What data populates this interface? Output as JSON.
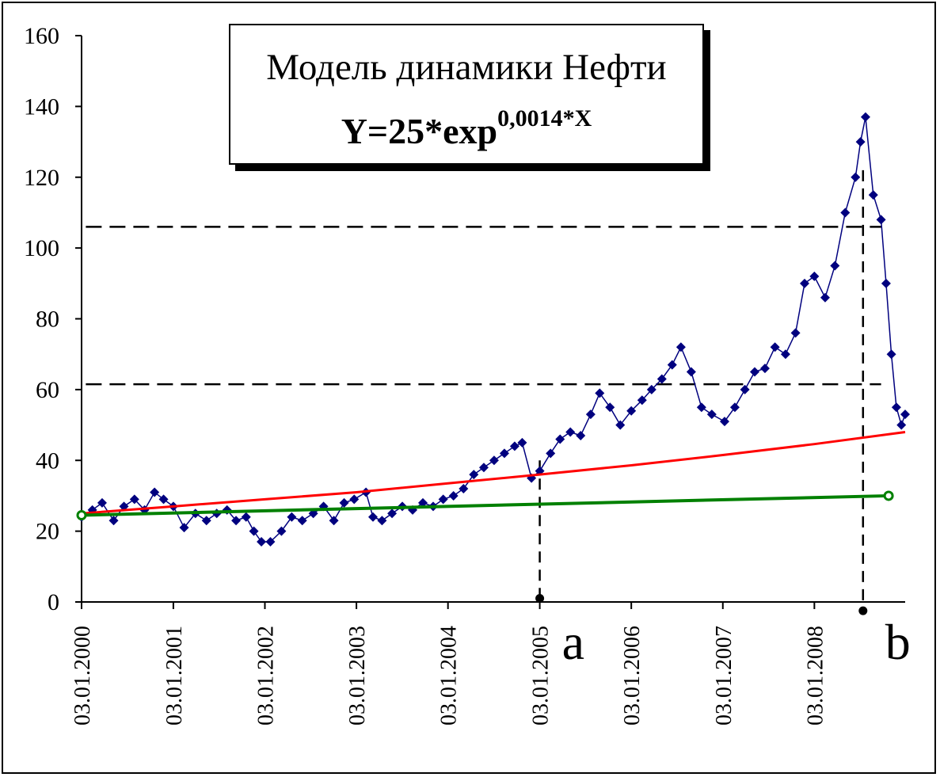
{
  "chart_data": {
    "type": "line",
    "title": "Модель динамики Нефти",
    "formula": {
      "base": "Y=25*exp",
      "exponent": "0,0014*X"
    },
    "xlabel": "",
    "ylabel": "",
    "ylim": [
      0,
      160
    ],
    "yticks": [
      "0",
      "20",
      "40",
      "60",
      "80",
      "100",
      "120",
      "140",
      "160"
    ],
    "xlim": [
      "2000-01-03",
      "2008-12-30"
    ],
    "xticks": [
      {
        "date": "2000-01-03",
        "label": "03.01.2000"
      },
      {
        "date": "2001-01-03",
        "label": "03.01.2001"
      },
      {
        "date": "2002-01-03",
        "label": "03.01.2002"
      },
      {
        "date": "2003-01-03",
        "label": "03.01.2003"
      },
      {
        "date": "2004-01-03",
        "label": "03.01.2004"
      },
      {
        "date": "2005-01-03",
        "label": "03.01.2005"
      },
      {
        "date": "2006-01-03",
        "label": "03.01.2006"
      },
      {
        "date": "2007-01-03",
        "label": "03.01.2007"
      },
      {
        "date": "2008-01-03",
        "label": "03.01.2008"
      }
    ],
    "grid": false,
    "series": [
      {
        "name": "",
        "color": "#00007f",
        "marker": "diamond",
        "x": [
          "2000-01-03",
          "2000-02-15",
          "2000-03-25",
          "2000-05-10",
          "2000-06-20",
          "2000-08-01",
          "2000-09-10",
          "2000-10-20",
          "2000-11-25",
          "2001-01-03",
          "2001-02-15",
          "2001-04-01",
          "2001-05-15",
          "2001-06-25",
          "2001-08-05",
          "2001-09-10",
          "2001-10-20",
          "2001-11-20",
          "2001-12-20",
          "2002-01-25",
          "2002-03-10",
          "2002-04-20",
          "2002-06-01",
          "2002-07-15",
          "2002-08-25",
          "2002-10-05",
          "2002-11-15",
          "2002-12-25",
          "2003-02-10",
          "2003-03-10",
          "2003-04-15",
          "2003-05-25",
          "2003-07-05",
          "2003-08-15",
          "2003-09-25",
          "2003-11-05",
          "2003-12-15",
          "2004-01-25",
          "2004-03-05",
          "2004-04-15",
          "2004-05-25",
          "2004-07-05",
          "2004-08-15",
          "2004-09-25",
          "2004-10-25",
          "2004-12-01",
          "2005-01-03",
          "2005-02-15",
          "2005-03-25",
          "2005-05-05",
          "2005-06-15",
          "2005-07-25",
          "2005-08-30",
          "2005-10-10",
          "2005-11-20",
          "2006-01-03",
          "2006-02-15",
          "2006-03-25",
          "2006-05-05",
          "2006-06-15",
          "2006-07-20",
          "2006-08-30",
          "2006-10-10",
          "2006-11-20",
          "2007-01-10",
          "2007-02-20",
          "2007-04-01",
          "2007-05-10",
          "2007-06-20",
          "2007-07-30",
          "2007-09-10",
          "2007-10-20",
          "2007-11-25",
          "2008-01-03",
          "2008-02-15",
          "2008-03-25",
          "2008-05-05",
          "2008-06-15",
          "2008-07-05",
          "2008-07-25",
          "2008-08-25",
          "2008-09-25",
          "2008-10-15",
          "2008-11-05",
          "2008-11-25",
          "2008-12-15",
          "2008-12-30"
        ],
        "values": [
          24,
          26,
          28,
          23,
          27,
          29,
          26,
          31,
          29,
          27,
          21,
          25,
          23,
          25,
          26,
          23,
          24,
          20,
          17,
          17,
          20,
          24,
          23,
          25,
          27,
          23,
          28,
          29,
          31,
          24,
          23,
          25,
          27,
          26,
          28,
          27,
          29,
          30,
          32,
          36,
          38,
          40,
          42,
          44,
          45,
          35,
          37,
          42,
          46,
          48,
          47,
          53,
          59,
          55,
          50,
          54,
          57,
          60,
          63,
          67,
          72,
          65,
          55,
          53,
          51,
          55,
          60,
          65,
          66,
          72,
          70,
          76,
          90,
          92,
          86,
          95,
          110,
          120,
          130,
          137,
          115,
          108,
          90,
          70,
          55,
          50,
          53
        ]
      },
      {
        "name": "",
        "color": "#ff0000",
        "x": [
          "2000-01-03",
          "2001-01-03",
          "2002-01-03",
          "2003-01-03",
          "2004-01-03",
          "2005-01-03",
          "2006-01-03",
          "2007-01-03",
          "2008-01-03",
          "2008-12-30"
        ],
        "values": [
          25,
          27,
          29,
          31,
          33.5,
          36,
          38.6,
          41.5,
          44.6,
          48
        ]
      },
      {
        "name": "",
        "color": "#008000",
        "marker": "circle-ends",
        "x": [
          "2000-01-03",
          "2008-10-25"
        ],
        "values": [
          24.5,
          30
        ]
      }
    ],
    "reference_lines": [
      {
        "orientation": "horizontal",
        "y": 61.5,
        "x_from": "2000-01-20",
        "x_to": "2008-09-25",
        "style": "dashed"
      },
      {
        "orientation": "horizontal",
        "y": 106,
        "x_from": "2000-01-20",
        "x_to": "2008-09-25",
        "style": "dashed"
      },
      {
        "orientation": "vertical",
        "x": "2005-01-03",
        "y_from": 40,
        "y_to": 1,
        "style": "dashed",
        "label": "a"
      },
      {
        "orientation": "vertical",
        "x": "2008-07-15",
        "y_from": 122,
        "y_to": -2.5,
        "style": "dashed",
        "label": "b"
      }
    ]
  }
}
